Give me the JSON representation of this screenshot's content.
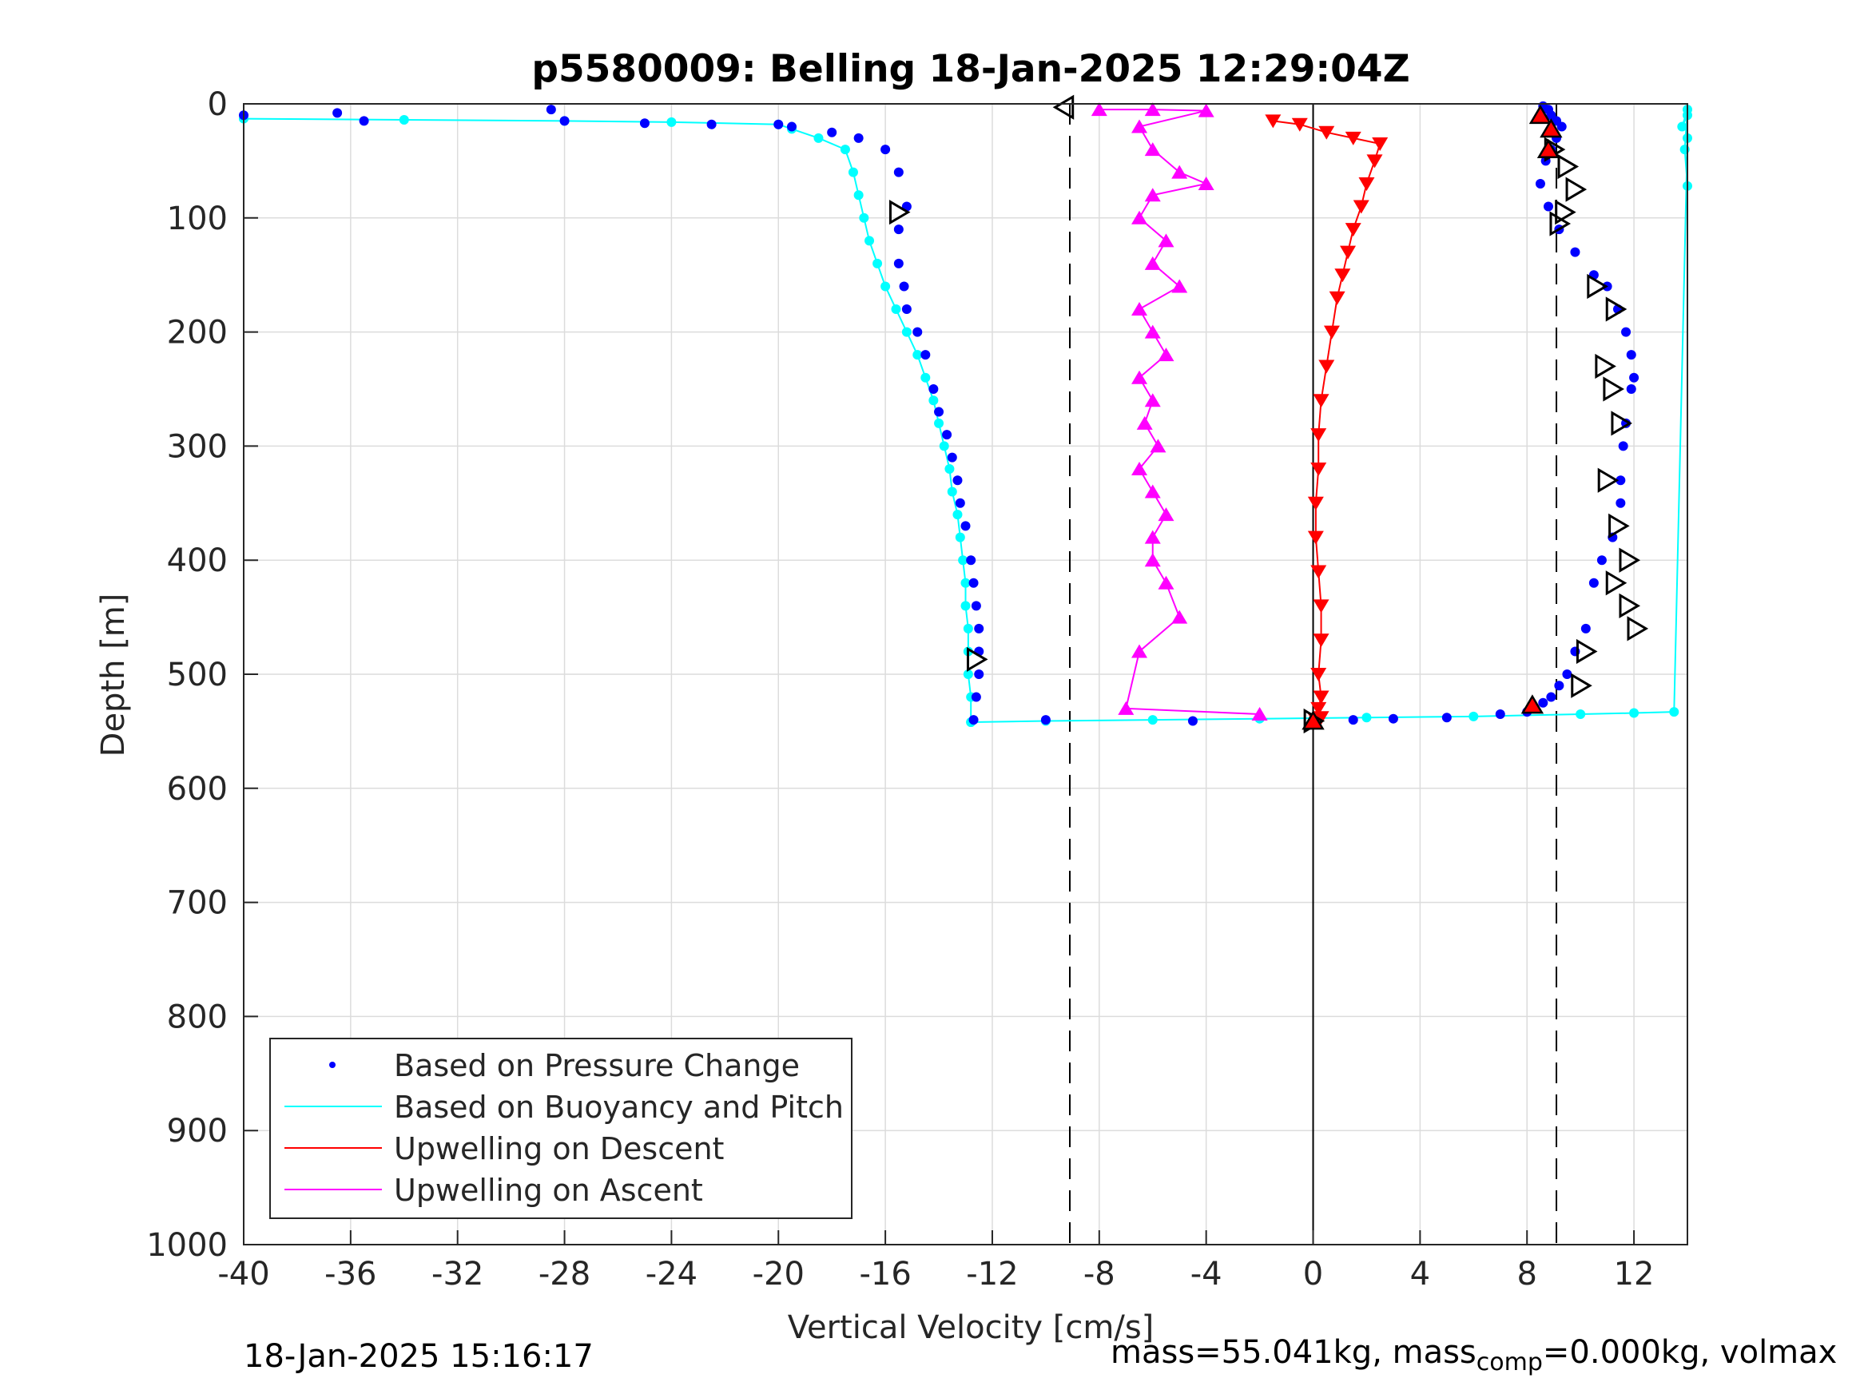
{
  "chart_data": {
    "type": "scatter",
    "title": "p5580009: Belling 18-Jan-2025 12:29:04Z",
    "xlabel": "Vertical Velocity [cm/s]",
    "ylabel": "Depth [m]",
    "xlim": [
      -40,
      14
    ],
    "ylim": [
      0,
      1000
    ],
    "y_reversed": true,
    "grid": true,
    "legend_position": "bottom-left",
    "x_ticks": [
      "-40",
      "-36",
      "-32",
      "-28",
      "-24",
      "-20",
      "-16",
      "-12",
      "-8",
      "-4",
      "0",
      "4",
      "8",
      "12"
    ],
    "y_ticks": [
      "0",
      "100",
      "200",
      "300",
      "400",
      "500",
      "600",
      "700",
      "800",
      "900",
      "1000"
    ],
    "reference_lines": [
      {
        "x": -9.1,
        "style": "dashed",
        "color": "#000000"
      },
      {
        "x": 0,
        "style": "solid",
        "color": "#000000"
      },
      {
        "x": 9.1,
        "style": "dashed",
        "color": "#000000"
      }
    ],
    "series": [
      {
        "name": "Based on Pressure Change",
        "color": "#0000ff",
        "marker": "dot",
        "segments": [
          {
            "label": "descent",
            "x": [
              -40,
              -36.5,
              -35.5,
              -28.5,
              -28,
              -25,
              -22.5,
              -20,
              -19.5,
              -18,
              -17,
              -16,
              -15.5,
              -15.2,
              -15.5,
              -15.5,
              -15.3,
              -15.2,
              -14.8,
              -14.5,
              -14.2,
              -14,
              -13.7,
              -13.5,
              -13.3,
              -13.2,
              -13,
              -12.8,
              -12.7,
              -12.6,
              -12.5,
              -12.5,
              -12.5,
              -12.6,
              -12.7,
              -10,
              -4.5
            ],
            "y": [
              10,
              8,
              15,
              5,
              15,
              17,
              18,
              18,
              20,
              25,
              30,
              40,
              60,
              90,
              110,
              140,
              160,
              180,
              200,
              220,
              250,
              270,
              290,
              310,
              330,
              350,
              370,
              400,
              420,
              440,
              460,
              480,
              500,
              520,
              540,
              540,
              541
            ]
          },
          {
            "label": "ascent",
            "x": [
              1.5,
              3,
              5,
              7,
              8,
              8.3,
              8.6,
              8.9,
              9.2,
              9.5,
              9.8,
              10.2,
              10.5,
              10.8,
              11.2,
              11.5,
              11.5,
              11.6,
              11.7,
              11.9,
              12,
              11.9,
              11.7,
              11.4,
              11,
              10.5,
              9.8,
              9.2,
              8.8,
              8.5,
              8.7,
              8.9,
              9.1,
              9.3,
              9.1,
              8.9,
              8.8,
              8.6
            ],
            "y": [
              540,
              539,
              538,
              535,
              533,
              530,
              525,
              520,
              510,
              500,
              480,
              460,
              420,
              400,
              380,
              350,
              330,
              300,
              280,
              250,
              240,
              220,
              200,
              180,
              160,
              150,
              130,
              110,
              90,
              70,
              50,
              40,
              30,
              20,
              15,
              10,
              5,
              2
            ]
          }
        ]
      },
      {
        "name": "Based on Buoyancy and Pitch",
        "color": "#00ffff",
        "marker": "line-dots",
        "segments": [
          {
            "label": "descent",
            "x": [
              -40,
              -34,
              -28,
              -24,
              -20,
              -19.5,
              -18.5,
              -17.5,
              -17.2,
              -17,
              -16.8,
              -16.6,
              -16.3,
              -16,
              -15.6,
              -15.2,
              -14.8,
              -14.5,
              -14.2,
              -14,
              -13.8,
              -13.6,
              -13.5,
              -13.3,
              -13.2,
              -13.1,
              -13,
              -13,
              -12.9,
              -12.9,
              -12.9,
              -12.8,
              -12.8
            ],
            "y": [
              13,
              14,
              15,
              16,
              18,
              22,
              30,
              40,
              60,
              80,
              100,
              120,
              140,
              160,
              180,
              200,
              220,
              240,
              260,
              280,
              300,
              320,
              340,
              360,
              380,
              400,
              420,
              440,
              460,
              480,
              500,
              520,
              542
            ]
          },
          {
            "label": "ascent",
            "x": [
              -12.8,
              -10,
              -6,
              -2,
              2,
              6,
              10,
              12,
              13.5,
              14,
              14,
              13.8,
              14,
              13.9,
              14
            ],
            "y": [
              542,
              541,
              540,
              539,
              538,
              537,
              535,
              534,
              533,
              30,
              10,
              20,
              5,
              40,
              72
            ]
          }
        ]
      },
      {
        "name": "Upwelling on Descent",
        "color": "#ff0000",
        "marker": "triangle-down",
        "x": [
          -1.5,
          -0.5,
          0.5,
          1.5,
          2.5,
          2.3,
          2,
          1.8,
          1.5,
          1.3,
          1.1,
          0.9,
          0.7,
          0.5,
          0.3,
          0.2,
          0.2,
          0.1,
          0.1,
          0.2,
          0.3,
          0.3,
          0.2,
          0.3,
          0.2,
          0.3,
          0.1
        ],
        "y": [
          15,
          18,
          25,
          30,
          35,
          50,
          70,
          90,
          110,
          130,
          150,
          170,
          200,
          230,
          260,
          290,
          320,
          350,
          380,
          410,
          440,
          470,
          500,
          520,
          530,
          538,
          540
        ]
      },
      {
        "name": "Upwelling on Ascent",
        "color": "#ff00ff",
        "marker": "triangle-up",
        "x": [
          -8,
          -6,
          -4,
          -6.5,
          -6,
          -5,
          -4,
          -6,
          -6.5,
          -5.5,
          -6,
          -5,
          -6.5,
          -6,
          -5.5,
          -6.5,
          -6,
          -6.3,
          -5.8,
          -6.5,
          -6,
          -5.5,
          -6,
          -6,
          -5.5,
          -5,
          -6.5,
          -7,
          -2
        ],
        "y": [
          5,
          5,
          6,
          20,
          40,
          60,
          70,
          80,
          100,
          120,
          140,
          160,
          180,
          200,
          220,
          240,
          260,
          280,
          300,
          320,
          340,
          360,
          380,
          400,
          420,
          450,
          480,
          530,
          535
        ]
      }
    ],
    "black_triangle_markers": {
      "color": "#000000",
      "x": [
        -9.3,
        -15.5,
        -12.6,
        9,
        9.5,
        9.8,
        9.4,
        9.2,
        10.6,
        11.3,
        10.9,
        11.2,
        11.5,
        11,
        11.4,
        11.8,
        11.3,
        11.8,
        12.1,
        10.2,
        10,
        0
      ],
      "y": [
        3,
        95,
        487,
        40,
        55,
        75,
        95,
        105,
        160,
        180,
        230,
        250,
        280,
        330,
        370,
        400,
        420,
        440,
        460,
        480,
        510,
        541
      ]
    },
    "red_up_markers": {
      "color": "#ff0000",
      "x": [
        8.5,
        8.9,
        8.8,
        8.2,
        0
      ],
      "y": [
        10,
        22,
        40,
        527,
        541
      ]
    },
    "legend": [
      {
        "label": "Based on Pressure Change",
        "color": "#0000ff",
        "marker": "dot"
      },
      {
        "label": "Based on Buoyancy and Pitch",
        "color": "#00ffff",
        "marker": "line"
      },
      {
        "label": "Upwelling on Descent",
        "color": "#ff0000",
        "marker": "line"
      },
      {
        "label": "Upwelling on Ascent",
        "color": "#ff00ff",
        "marker": "line"
      }
    ]
  },
  "footer": {
    "date": "18-Jan-2025 15:16:17",
    "mass_prefix": "mass=55.041kg, mass",
    "mass_sub": "comp",
    "mass_suffix": "=0.000kg, volmax"
  }
}
